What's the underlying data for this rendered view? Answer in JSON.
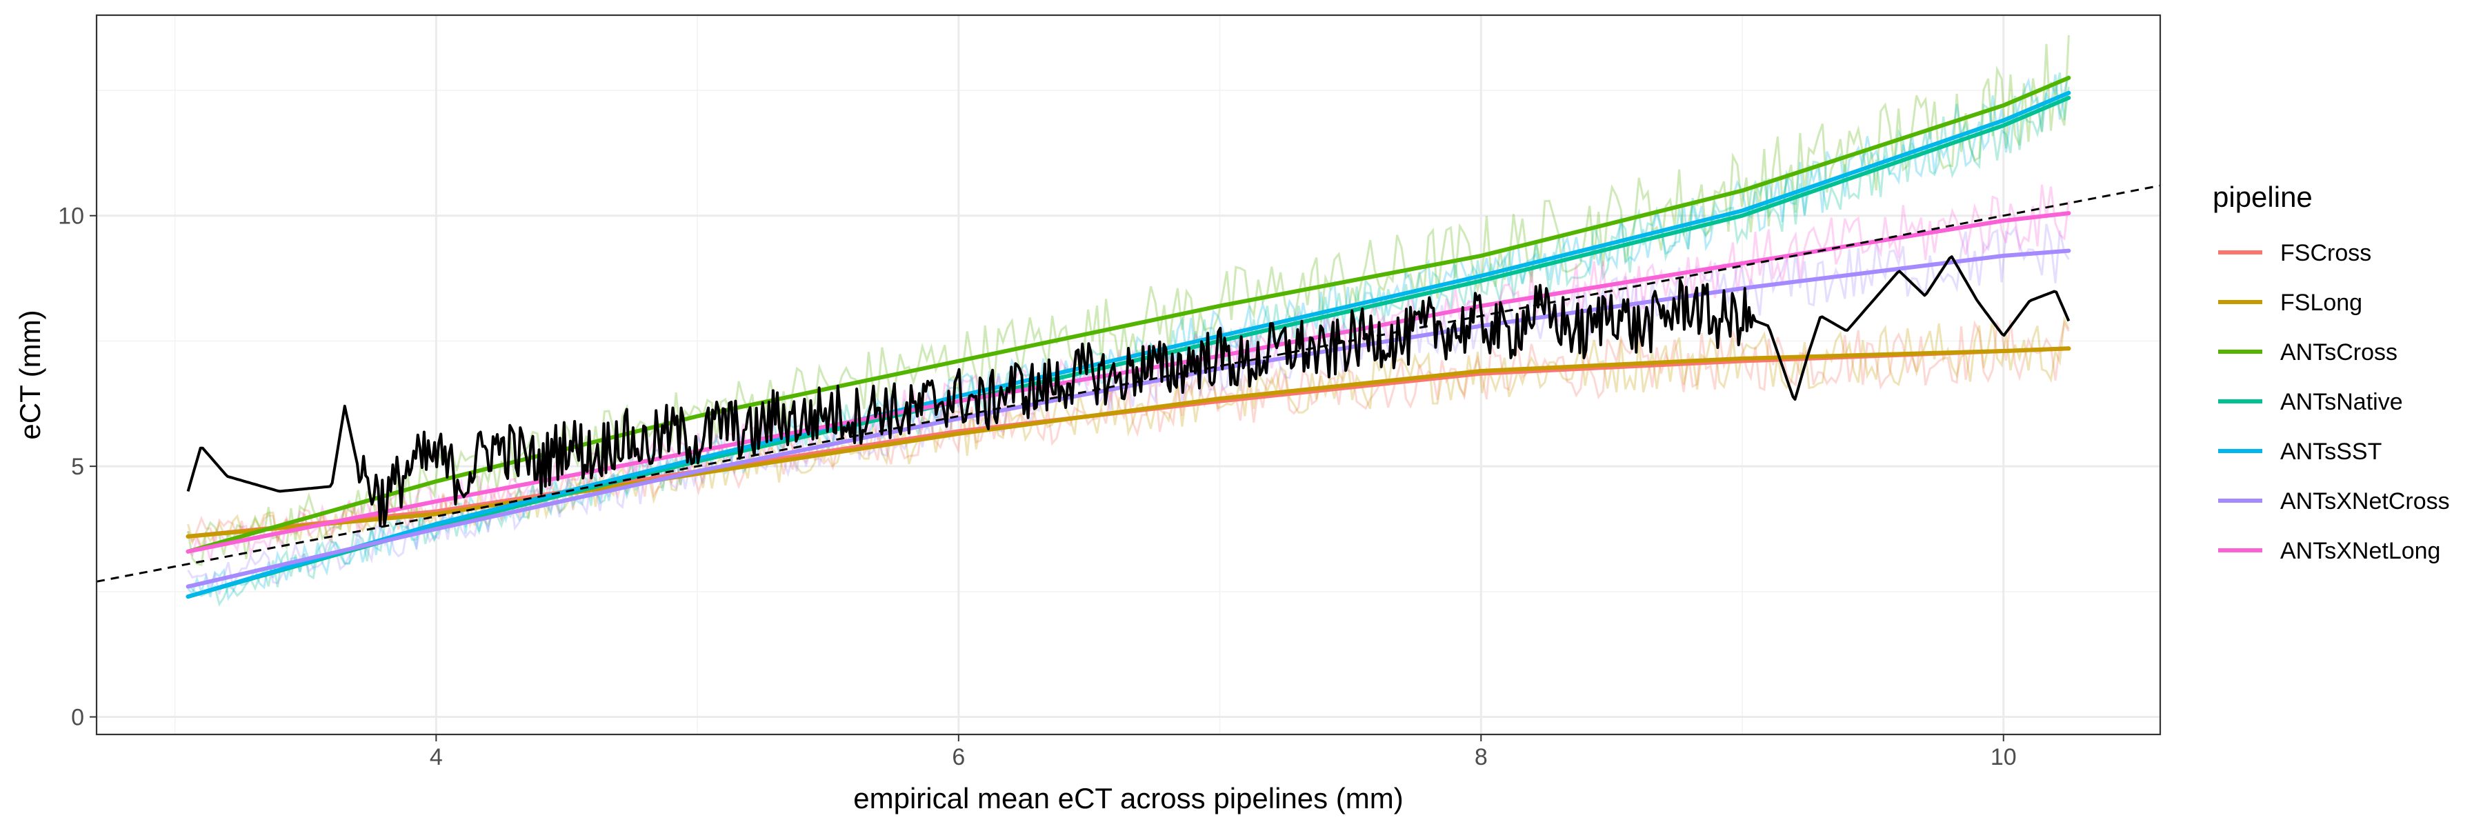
{
  "chart_data": {
    "type": "line",
    "title": "",
    "xlabel": "empirical mean eCT across pipelines (mm)",
    "ylabel": "eCT (mm)",
    "xlim": [
      2.7,
      10.6
    ],
    "ylim": [
      -0.35,
      14.0
    ],
    "x_ticks": [
      4,
      6,
      8,
      10
    ],
    "y_ticks": [
      0,
      5,
      10
    ],
    "grid": true,
    "legend": {
      "title": "pipeline",
      "position": "right"
    },
    "series": [
      {
        "name": "FSCross",
        "color": "#F8766D",
        "x": [
          3.05,
          4,
          5,
          6,
          7,
          8,
          9,
          10,
          10.25
        ],
        "y": [
          3.6,
          4.1,
          4.9,
          5.7,
          6.3,
          6.85,
          7.1,
          7.3,
          7.35
        ]
      },
      {
        "name": "FSLong",
        "color": "#C49A00",
        "x": [
          3.05,
          4,
          5,
          6,
          7,
          8,
          9,
          10,
          10.25
        ],
        "y": [
          3.6,
          4.05,
          4.85,
          5.65,
          6.35,
          6.9,
          7.15,
          7.3,
          7.35
        ]
      },
      {
        "name": "ANTsCross",
        "color": "#53B400",
        "x": [
          3.05,
          4,
          5,
          6,
          7,
          8,
          9,
          10,
          10.25
        ],
        "y": [
          3.3,
          4.7,
          6.0,
          7.1,
          8.2,
          9.2,
          10.5,
          12.2,
          12.75
        ]
      },
      {
        "name": "ANTsNative",
        "color": "#00C094",
        "x": [
          3.05,
          4,
          5,
          6,
          7,
          8,
          9,
          10,
          10.25
        ],
        "y": [
          2.4,
          3.8,
          5.1,
          6.3,
          7.5,
          8.7,
          10.0,
          11.8,
          12.35
        ]
      },
      {
        "name": "ANTsSST",
        "color": "#00B6EB",
        "x": [
          3.05,
          4,
          5,
          6,
          7,
          8,
          9,
          10,
          10.25
        ],
        "y": [
          2.4,
          3.85,
          5.15,
          6.4,
          7.6,
          8.8,
          10.1,
          11.9,
          12.45
        ]
      },
      {
        "name": "ANTsXNetCross",
        "color": "#A58AFF",
        "x": [
          3.05,
          4,
          5,
          6,
          7,
          8,
          9,
          10,
          10.25
        ],
        "y": [
          2.6,
          3.75,
          4.9,
          5.95,
          6.95,
          7.8,
          8.55,
          9.2,
          9.3
        ]
      },
      {
        "name": "ANTsXNetLong",
        "color": "#FB61D7",
        "x": [
          3.05,
          4,
          5,
          6,
          7,
          8,
          9,
          10,
          10.25
        ],
        "y": [
          3.3,
          4.3,
          5.3,
          6.3,
          7.2,
          8.2,
          9.05,
          9.9,
          10.05
        ]
      }
    ],
    "empirical_mean_line": {
      "color": "#000000",
      "x": [
        3.05,
        3.1,
        3.2,
        3.4,
        3.6,
        3.65,
        3.7,
        3.8,
        3.9,
        4.0,
        4.1,
        4.2,
        4.3,
        4.4,
        4.5,
        4.6,
        4.7,
        4.8,
        4.9,
        5.0,
        5.1,
        5.2,
        5.3,
        5.4,
        5.5,
        5.6,
        5.7,
        5.8,
        5.9,
        6.0,
        6.1,
        6.2,
        6.3,
        6.4,
        6.5,
        6.6,
        6.7,
        6.8,
        6.9,
        7.0,
        7.1,
        7.2,
        7.3,
        7.4,
        7.5,
        7.6,
        7.7,
        7.8,
        7.9,
        8.0,
        8.1,
        8.2,
        8.3,
        8.4,
        8.5,
        8.6,
        8.7,
        8.8,
        8.9,
        9.0,
        9.1,
        9.2,
        9.25,
        9.3,
        9.4,
        9.5,
        9.6,
        9.7,
        9.8,
        9.9,
        10.0,
        10.1,
        10.2,
        10.25
      ],
      "y": [
        4.5,
        5.4,
        4.8,
        4.5,
        4.6,
        6.2,
        5.0,
        4.3,
        5.0,
        5.2,
        4.7,
        5.4,
        5.3,
        5.0,
        5.5,
        5.2,
        5.6,
        5.4,
        5.7,
        5.5,
        5.9,
        5.6,
        6.0,
        5.9,
        6.1,
        6.0,
        6.2,
        6.0,
        6.3,
        6.4,
        6.2,
        6.6,
        6.5,
        6.7,
        6.9,
        6.7,
        7.0,
        6.9,
        7.1,
        7.2,
        7.0,
        7.3,
        7.4,
        7.2,
        7.5,
        7.6,
        7.5,
        7.8,
        7.7,
        7.9,
        7.6,
        8.1,
        7.9,
        7.6,
        8.2,
        7.7,
        8.0,
        8.3,
        7.9,
        8.0,
        7.8,
        6.3,
        7.2,
        8.0,
        7.7,
        8.3,
        8.9,
        8.4,
        9.2,
        8.3,
        7.6,
        8.3,
        8.5,
        7.9
      ]
    },
    "identity_line": {
      "style": "dashed",
      "color": "#000000",
      "x": [
        2.7,
        10.6
      ],
      "y": [
        2.7,
        10.6
      ]
    }
  }
}
